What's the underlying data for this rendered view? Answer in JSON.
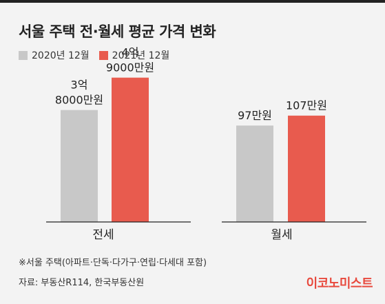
{
  "title": "서울 주택 전·월세 평균 가격 변화",
  "legend": [
    {
      "label": "2020년 12월",
      "color": "#c8c8c8"
    },
    {
      "label": "2021년 12월",
      "color": "#e85b4e"
    }
  ],
  "chart_data": {
    "type": "bar",
    "title": "서울 주택 전·월세 평균 가격 변화",
    "categories": [
      "전세",
      "월세"
    ],
    "series": [
      {
        "name": "2020년 12월",
        "color": "#c8c8c8",
        "values": [
          38000,
          97
        ],
        "labels": [
          "3억\n8000만원",
          "97만원"
        ]
      },
      {
        "name": "2021년 12월",
        "color": "#e85b4e",
        "values": [
          49000,
          107
        ],
        "labels": [
          "4억\n9000만원",
          "107만원"
        ]
      }
    ],
    "panels": [
      {
        "category": "전세",
        "unit": "만원",
        "ylim": [
          0,
          55000
        ]
      },
      {
        "category": "월세",
        "unit": "만원",
        "ylim": [
          0,
          163
        ]
      }
    ],
    "grid": false,
    "legend_position": "top-left"
  },
  "notes": {
    "footnote": "※서울 주택(아파트·단독·다가구·연립·다세대 포함)",
    "source": "자료: 부동산R114, 한국부동산원"
  },
  "brand": "이코노미스트"
}
